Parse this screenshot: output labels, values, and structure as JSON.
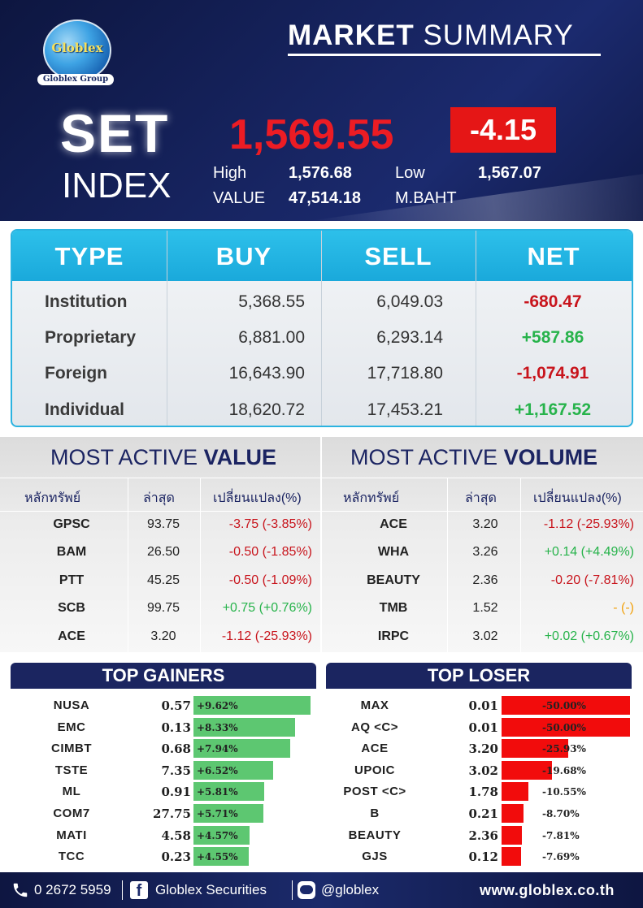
{
  "header": {
    "logo_text": "Globlex",
    "logo_sub": "Globlex Group",
    "title_bold": "MARKET",
    "title_rest": "SUMMARY",
    "set": "SET",
    "index": "INDEX",
    "value": "1,569.55",
    "change": "-4.15",
    "high_label": "High",
    "high": "1,576.68",
    "low_label": "Low",
    "low": "1,567.07",
    "value_label": "VALUE",
    "value_amount": "47,514.18",
    "value_unit": "M.BAHT",
    "colors": {
      "index_value": "#ec1c24",
      "change_box": "#e51616"
    }
  },
  "investor_table": {
    "headers": [
      "TYPE",
      "BUY",
      "SELL",
      "NET"
    ],
    "rows": [
      {
        "type": "Institution",
        "buy": "5,368.55",
        "sell": "6,049.03",
        "net": "-680.47",
        "dir": "neg"
      },
      {
        "type": "Proprietary",
        "buy": "6,881.00",
        "sell": "6,293.14",
        "net": "+587.86",
        "dir": "pos"
      },
      {
        "type": "Foreign",
        "buy": "16,643.90",
        "sell": "17,718.80",
        "net": "-1,074.91",
        "dir": "neg"
      },
      {
        "type": "Individual",
        "buy": "18,620.72",
        "sell": "17,453.21",
        "net": "+1,167.52",
        "dir": "pos"
      }
    ]
  },
  "most_active_value": {
    "title_light": "MOST ACTIVE",
    "title_bold": "VALUE",
    "headers": [
      "หลักทรัพย์",
      "ล่าสุด",
      "เปลี่ยนแปลง(%)"
    ],
    "rows": [
      {
        "symbol": "GPSC",
        "last": "93.75",
        "change": "-3.75 (-3.85%)",
        "dir": "neg"
      },
      {
        "symbol": "BAM",
        "last": "26.50",
        "change": "-0.50 (-1.85%)",
        "dir": "neg"
      },
      {
        "symbol": "PTT",
        "last": "45.25",
        "change": "-0.50 (-1.09%)",
        "dir": "neg"
      },
      {
        "symbol": "SCB",
        "last": "99.75",
        "change": "+0.75 (+0.76%)",
        "dir": "pos"
      },
      {
        "symbol": "ACE",
        "last": "3.20",
        "change": "-1.12 (-25.93%)",
        "dir": "neg"
      }
    ]
  },
  "most_active_volume": {
    "title_light": "MOST ACTIVE",
    "title_bold": "VOLUME",
    "headers": [
      "หลักทรัพย์",
      "ล่าสุด",
      "เปลี่ยนแปลง(%)"
    ],
    "rows": [
      {
        "symbol": "ACE",
        "last": "3.20",
        "change": "-1.12 (-25.93%)",
        "dir": "neg"
      },
      {
        "symbol": "WHA",
        "last": "3.26",
        "change": "+0.14 (+4.49%)",
        "dir": "pos"
      },
      {
        "symbol": "BEAUTY",
        "last": "2.36",
        "change": "-0.20 (-7.81%)",
        "dir": "neg"
      },
      {
        "symbol": "TMB",
        "last": "1.52",
        "change": "- (-)",
        "dir": "orange"
      },
      {
        "symbol": "IRPC",
        "last": "3.02",
        "change": "+0.02 (+0.67%)",
        "dir": "pos"
      }
    ]
  },
  "top_gainers": {
    "title": "TOP GAINERS",
    "bar_color": "#5dc771",
    "rows": [
      {
        "symbol": "NUSA",
        "price": "0.57",
        "pct": "+9.62%",
        "value": 9.62
      },
      {
        "symbol": "EMC",
        "price": "0.13",
        "pct": "+8.33%",
        "value": 8.33
      },
      {
        "symbol": "CIMBT",
        "price": "0.68",
        "pct": "+7.94%",
        "value": 7.94
      },
      {
        "symbol": "TSTE",
        "price": "7.35",
        "pct": "+6.52%",
        "value": 6.52
      },
      {
        "symbol": "ML",
        "price": "0.91",
        "pct": "+5.81%",
        "value": 5.81
      },
      {
        "symbol": "COM7",
        "price": "27.75",
        "pct": "+5.71%",
        "value": 5.71
      },
      {
        "symbol": "MATI",
        "price": "4.58",
        "pct": "+4.57%",
        "value": 4.57
      },
      {
        "symbol": "TCC",
        "price": "0.23",
        "pct": "+4.55%",
        "value": 4.55
      }
    ]
  },
  "top_loser": {
    "title": "TOP LOSER",
    "bar_color": "#f20c0c",
    "rows": [
      {
        "symbol": "MAX",
        "price": "0.01",
        "pct": "-50.00%",
        "value": 50.0
      },
      {
        "symbol": "AQ <C>",
        "price": "0.01",
        "pct": "-50.00%",
        "value": 50.0
      },
      {
        "symbol": "ACE",
        "price": "3.20",
        "pct": "-25.93%",
        "value": 25.93
      },
      {
        "symbol": "UPOIC",
        "price": "3.02",
        "pct": "-19.68%",
        "value": 19.68
      },
      {
        "symbol": "POST <C>",
        "price": "1.78",
        "pct": "-10.55%",
        "value": 10.55
      },
      {
        "symbol": "B",
        "price": "0.21",
        "pct": "-8.70%",
        "value": 8.7
      },
      {
        "symbol": "BEAUTY",
        "price": "2.36",
        "pct": "-7.81%",
        "value": 7.81
      },
      {
        "symbol": "GJS",
        "price": "0.12",
        "pct": "-7.69%",
        "value": 7.69
      }
    ]
  },
  "footer": {
    "phone_icon": "phone-icon",
    "phone": "0 2672 5959",
    "facebook_icon": "facebook-icon",
    "facebook": "Globlex Securities",
    "line_icon": "line-icon",
    "line": "@globlex",
    "website": "www.globlex.co.th"
  }
}
